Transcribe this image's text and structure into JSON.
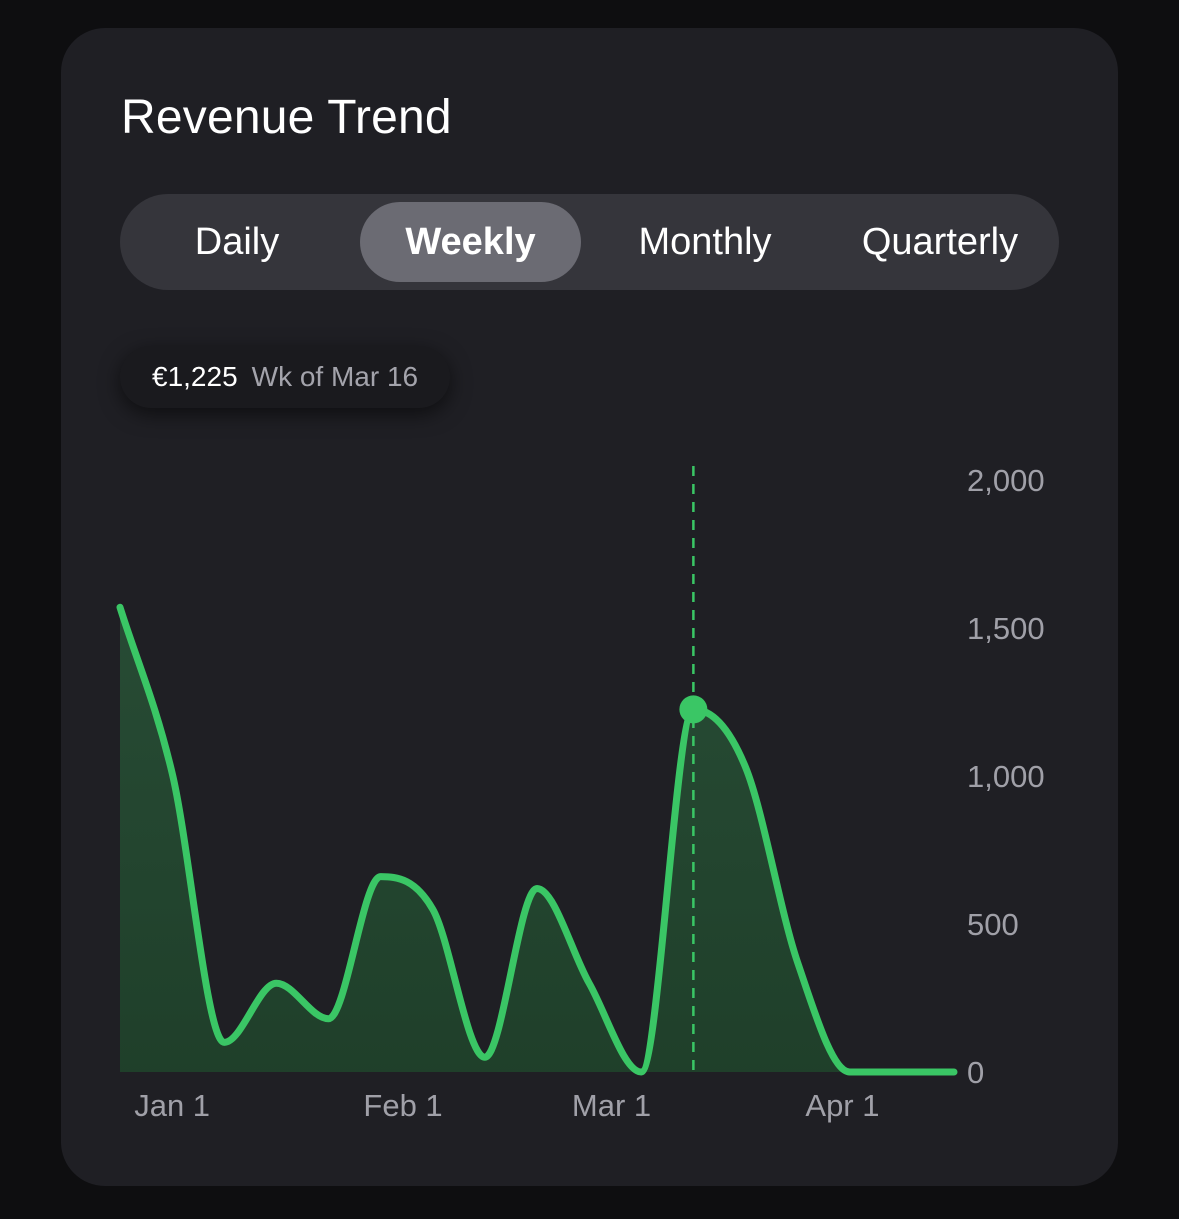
{
  "title": "Revenue Trend",
  "tabs": [
    {
      "label": "Daily",
      "active": false
    },
    {
      "label": "Weekly",
      "active": true
    },
    {
      "label": "Monthly",
      "active": false
    },
    {
      "label": "Quarterly",
      "active": false
    }
  ],
  "tooltip": {
    "value": "€1,225",
    "label": "Wk of Mar 16"
  },
  "colors": {
    "line": "#3ac665",
    "card": "#1f1f24",
    "segment_active": "#6b6b73"
  },
  "chart_data": {
    "type": "area",
    "title": "Revenue Trend",
    "xlabel": "",
    "ylabel": "",
    "x_ticks": [
      {
        "label": "Jan 1",
        "week": 1.0
      },
      {
        "label": "Feb 1",
        "week": 5.43
      },
      {
        "label": "Mar 1",
        "week": 9.43
      },
      {
        "label": "Apr 1",
        "week": 13.86
      }
    ],
    "y_ticks": [
      0,
      500,
      1000,
      1500,
      2000
    ],
    "ylim": [
      0,
      2000
    ],
    "xlim": [
      0,
      16
    ],
    "y_axis_position": "right",
    "grid": false,
    "highlight": {
      "week": 11,
      "value": 1225
    },
    "series": [
      {
        "x": [
          0,
          1,
          2,
          3,
          4,
          5,
          6,
          7,
          8,
          9,
          10,
          11,
          12,
          13,
          14,
          15,
          16
        ],
        "values": [
          1570,
          1010,
          100,
          300,
          180,
          660,
          550,
          50,
          620,
          300,
          0,
          1225,
          1030,
          370,
          0,
          0,
          0
        ]
      }
    ]
  }
}
